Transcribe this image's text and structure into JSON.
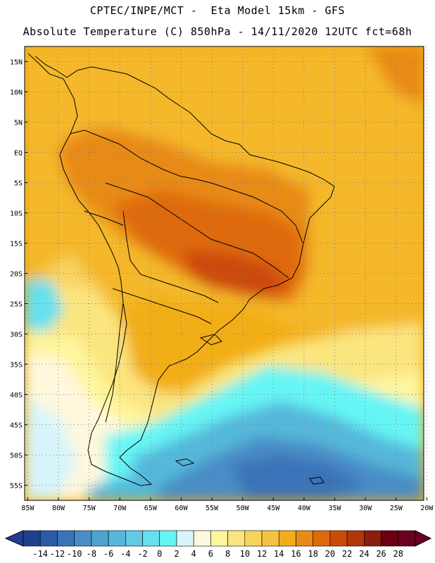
{
  "header": {
    "line1": "CPTEC/INPE/MCT -  Eta Model 15km - GFS",
    "line2": "Absolute Temperature (C) 850hPa - 14/11/2020 12UTC fct=68h"
  },
  "map": {
    "variable": "Absolute Temperature",
    "units": "C",
    "level": "850hPa",
    "lat_labels": [
      "15N",
      "10N",
      "5N",
      "EQ",
      "5S",
      "10S",
      "15S",
      "20S",
      "25S",
      "30S",
      "35S",
      "40S",
      "45S",
      "50S",
      "55S"
    ],
    "lon_labels": [
      "85W",
      "80W",
      "75W",
      "70W",
      "65W",
      "60W",
      "55W",
      "50W",
      "45W",
      "40W",
      "35W",
      "30W",
      "25W",
      "20W"
    ],
    "lat_range": [
      17.5,
      -57.5
    ],
    "lon_range": [
      -85.5,
      -20.5
    ]
  },
  "colorbar": {
    "labels": [
      "-14",
      "-12",
      "-10",
      "-8",
      "-6",
      "-4",
      "-2",
      "0",
      "2",
      "4",
      "6",
      "8",
      "10",
      "12",
      "14",
      "16",
      "18",
      "20",
      "22",
      "24",
      "26",
      "28"
    ],
    "colors": [
      "#1f3f8f",
      "#2d5aa6",
      "#3a73b8",
      "#4a8cc6",
      "#4ea3d0",
      "#55b8da",
      "#5fcce4",
      "#66e0ee",
      "#66f5f5",
      "#d7f5fa",
      "#fff8dc",
      "#fff59c",
      "#fbe57f",
      "#f8d35e",
      "#f4c23f",
      "#f2ae16",
      "#e88a14",
      "#df6a0c",
      "#cc4a08",
      "#b03808",
      "#8a1e10",
      "#6b0010",
      "#6b0020"
    ]
  }
}
